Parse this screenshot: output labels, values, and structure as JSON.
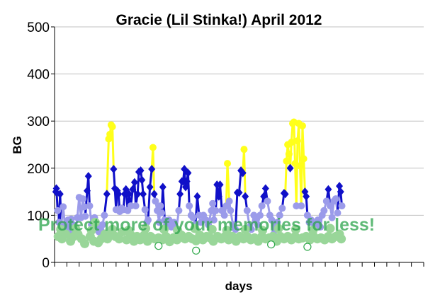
{
  "chart_data": {
    "type": "line",
    "title": "Gracie (Lil Stinka!) April 2012",
    "xlabel": "days",
    "ylabel": "BG",
    "ylim": [
      0,
      500
    ],
    "yticks": [
      0,
      100,
      200,
      300,
      400,
      500
    ],
    "xlim": [
      0,
      30
    ],
    "grid": "horizontal",
    "legend": "none",
    "colors": {
      "line_main": "#1010c8",
      "line_light": "#9b9bea",
      "line_high": "#ffff1a",
      "low_points": "#99d699",
      "very_low_points": "#2fa84a",
      "gridline": "#c0c0c0"
    },
    "series": [
      {
        "values": [
          [
            0.1,
            150
          ],
          [
            0.15,
            157
          ],
          [
            0.25,
            110
          ],
          [
            0.35,
            85
          ],
          [
            0.45,
            145
          ],
          [
            0.55,
            80
          ],
          [
            0.7,
            118
          ],
          [
            0.85,
            75
          ],
          [
            1.0,
            70
          ],
          [
            1.1,
            90
          ],
          [
            1.2,
            60
          ],
          [
            1.35,
            92
          ],
          [
            1.5,
            80
          ],
          [
            1.6,
            70
          ],
          [
            1.7,
            65
          ],
          [
            1.85,
            95
          ],
          [
            2.0,
            138
          ],
          [
            2.15,
            95
          ],
          [
            2.3,
            135
          ],
          [
            2.4,
            118
          ],
          [
            2.5,
            98
          ],
          [
            2.65,
            152
          ],
          [
            2.75,
            183
          ],
          [
            2.85,
            120
          ],
          [
            3.0,
            80
          ],
          [
            3.1,
            70
          ],
          [
            3.25,
            95
          ],
          [
            3.4,
            85
          ],
          [
            3.5,
            75
          ],
          [
            3.6,
            65
          ],
          [
            3.75,
            70
          ],
          [
            3.9,
            80
          ],
          [
            4.05,
            100
          ],
          [
            4.25,
            145
          ],
          [
            4.4,
            262
          ],
          [
            4.5,
            272
          ],
          [
            4.6,
            292
          ],
          [
            4.7,
            288
          ],
          [
            4.8,
            198
          ],
          [
            4.9,
            157
          ],
          [
            5.0,
            112
          ],
          [
            5.1,
            152
          ],
          [
            5.2,
            145
          ],
          [
            5.3,
            108
          ],
          [
            5.45,
            115
          ],
          [
            5.6,
            112
          ],
          [
            5.7,
            145
          ],
          [
            5.8,
            155
          ],
          [
            5.95,
            110
          ],
          [
            6.05,
            145
          ],
          [
            6.2,
            120
          ],
          [
            6.35,
            155
          ],
          [
            6.5,
            170
          ],
          [
            6.6,
            120
          ],
          [
            6.75,
            145
          ],
          [
            6.85,
            192
          ],
          [
            7.0,
            195
          ],
          [
            7.1,
            175
          ],
          [
            7.2,
            145
          ],
          [
            7.35,
            112
          ],
          [
            7.5,
            85
          ],
          [
            7.6,
            90
          ],
          [
            7.75,
            160
          ],
          [
            7.9,
            198
          ],
          [
            8.0,
            244
          ],
          [
            8.1,
            145
          ],
          [
            8.2,
            130
          ],
          [
            8.35,
            110
          ],
          [
            8.5,
            85
          ],
          [
            8.6,
            120
          ],
          [
            8.7,
            105
          ],
          [
            8.8,
            160
          ],
          [
            8.95,
            90
          ],
          [
            9.1,
            80
          ],
          [
            9.3,
            90
          ],
          [
            9.5,
            75
          ],
          [
            9.7,
            85
          ],
          [
            9.9,
            70
          ],
          [
            10.1,
            110
          ],
          [
            10.2,
            145
          ],
          [
            10.35,
            172
          ],
          [
            10.45,
            172
          ],
          [
            10.55,
            198
          ],
          [
            10.65,
            160
          ],
          [
            10.75,
            172
          ],
          [
            10.85,
            190
          ],
          [
            10.95,
            120
          ],
          [
            11.1,
            100
          ],
          [
            11.25,
            95
          ],
          [
            11.45,
            80
          ],
          [
            11.6,
            140
          ],
          [
            11.75,
            100
          ],
          [
            11.9,
            85
          ],
          [
            12.1,
            100
          ],
          [
            12.3,
            90
          ],
          [
            12.5,
            80
          ],
          [
            12.75,
            110
          ],
          [
            12.85,
            125
          ],
          [
            12.95,
            90
          ],
          [
            13.1,
            110
          ],
          [
            13.2,
            165
          ],
          [
            13.35,
            140
          ],
          [
            13.45,
            165
          ],
          [
            13.6,
            110
          ],
          [
            13.8,
            100
          ],
          [
            13.95,
            120
          ],
          [
            14.05,
            210
          ],
          [
            14.2,
            130
          ],
          [
            14.3,
            110
          ],
          [
            14.5,
            80
          ],
          [
            14.7,
            70
          ],
          [
            14.85,
            148
          ],
          [
            15.0,
            148
          ],
          [
            15.15,
            195
          ],
          [
            15.3,
            190
          ],
          [
            15.4,
            240
          ],
          [
            15.5,
            140
          ],
          [
            15.65,
            110
          ],
          [
            15.85,
            75
          ],
          [
            16.0,
            70
          ],
          [
            16.2,
            100
          ],
          [
            16.35,
            90
          ],
          [
            16.5,
            80
          ],
          [
            16.7,
            100
          ],
          [
            16.85,
            120
          ],
          [
            17.0,
            140
          ],
          [
            17.15,
            157
          ],
          [
            17.3,
            130
          ],
          [
            17.5,
            100
          ],
          [
            17.65,
            90
          ],
          [
            17.8,
            60
          ],
          [
            17.95,
            75
          ],
          [
            18.1,
            85
          ],
          [
            18.3,
            100
          ],
          [
            18.5,
            115
          ],
          [
            18.65,
            147
          ],
          [
            18.75,
            145
          ],
          [
            18.85,
            215
          ],
          [
            18.95,
            250
          ],
          [
            19.05,
            230
          ],
          [
            19.15,
            200
          ],
          [
            19.25,
            255
          ],
          [
            19.35,
            295
          ],
          [
            19.45,
            298
          ],
          [
            19.55,
            210
          ],
          [
            19.65,
            120
          ],
          [
            19.75,
            258
          ],
          [
            19.85,
            295
          ],
          [
            19.95,
            205
          ],
          [
            20.05,
            120
          ],
          [
            20.15,
            290
          ],
          [
            20.25,
            220
          ],
          [
            20.35,
            150
          ],
          [
            20.45,
            140
          ],
          [
            20.55,
            100
          ],
          [
            20.7,
            85
          ],
          [
            20.85,
            90
          ],
          [
            21.0,
            70
          ],
          [
            21.2,
            80
          ],
          [
            21.4,
            90
          ],
          [
            21.6,
            75
          ],
          [
            21.75,
            100
          ],
          [
            21.9,
            110
          ],
          [
            22.1,
            130
          ],
          [
            22.25,
            155
          ],
          [
            22.4,
            120
          ],
          [
            22.55,
            95
          ],
          [
            22.7,
            130
          ],
          [
            22.85,
            135
          ],
          [
            23.0,
            105
          ],
          [
            23.15,
            162
          ],
          [
            23.25,
            150
          ],
          [
            23.35,
            120
          ]
        ]
      }
    ],
    "low_points": [
      [
        0.3,
        55
      ],
      [
        0.6,
        50
      ],
      [
        0.9,
        60
      ],
      [
        1.3,
        45
      ],
      [
        1.55,
        55
      ],
      [
        1.9,
        60
      ],
      [
        2.2,
        50
      ],
      [
        2.45,
        40
      ],
      [
        2.9,
        55
      ],
      [
        3.2,
        45
      ],
      [
        3.3,
        85
      ],
      [
        3.55,
        42
      ],
      [
        3.8,
        50
      ],
      [
        4.1,
        60
      ],
      [
        4.3,
        50
      ],
      [
        4.55,
        58
      ],
      [
        4.95,
        55
      ],
      [
        5.25,
        50
      ],
      [
        5.5,
        65
      ],
      [
        5.85,
        48
      ],
      [
        6.15,
        60
      ],
      [
        6.45,
        45
      ],
      [
        6.7,
        55
      ],
      [
        6.95,
        48
      ],
      [
        7.3,
        58
      ],
      [
        7.55,
        45
      ],
      [
        7.8,
        55
      ],
      [
        8.15,
        50
      ],
      [
        8.45,
        52
      ],
      [
        8.75,
        48
      ],
      [
        9.05,
        55
      ],
      [
        9.35,
        44
      ],
      [
        9.65,
        52
      ],
      [
        9.95,
        48
      ],
      [
        10.3,
        58
      ],
      [
        10.6,
        50
      ],
      [
        10.9,
        55
      ],
      [
        11.2,
        50
      ],
      [
        11.5,
        46
      ],
      [
        11.8,
        58
      ],
      [
        12.05,
        48
      ],
      [
        12.35,
        55
      ],
      [
        12.65,
        52
      ],
      [
        12.9,
        45
      ],
      [
        13.25,
        55
      ],
      [
        13.55,
        50
      ],
      [
        13.85,
        55
      ],
      [
        14.15,
        48
      ],
      [
        14.45,
        55
      ],
      [
        14.75,
        45
      ],
      [
        15.05,
        55
      ],
      [
        15.35,
        50
      ],
      [
        15.65,
        55
      ],
      [
        15.95,
        48
      ],
      [
        16.25,
        52
      ],
      [
        16.55,
        45
      ],
      [
        16.85,
        55
      ],
      [
        17.15,
        50
      ],
      [
        17.45,
        52
      ],
      [
        17.75,
        55
      ],
      [
        18.05,
        45
      ],
      [
        18.35,
        55
      ],
      [
        18.65,
        50
      ],
      [
        18.95,
        55
      ],
      [
        19.25,
        48
      ],
      [
        19.55,
        55
      ],
      [
        19.85,
        50
      ],
      [
        20.15,
        52
      ],
      [
        20.45,
        55
      ],
      [
        20.75,
        48
      ],
      [
        21.05,
        55
      ],
      [
        21.35,
        50
      ],
      [
        21.65,
        52
      ],
      [
        21.95,
        48
      ],
      [
        22.25,
        55
      ],
      [
        22.55,
        50
      ],
      [
        22.85,
        55
      ],
      [
        23.15,
        60
      ],
      [
        23.3,
        50
      ],
      [
        0.5,
        70
      ],
      [
        1.7,
        72
      ],
      [
        3.0,
        68
      ],
      [
        4.7,
        70
      ],
      [
        6.0,
        68
      ],
      [
        7.4,
        72
      ],
      [
        8.9,
        70
      ],
      [
        10.0,
        68
      ],
      [
        11.4,
        72
      ],
      [
        12.8,
        70
      ],
      [
        14.0,
        68
      ],
      [
        15.5,
        70
      ],
      [
        16.9,
        68
      ],
      [
        18.2,
        72
      ],
      [
        19.6,
        70
      ],
      [
        21.0,
        68
      ],
      [
        22.4,
        72
      ]
    ],
    "very_low_points": [
      [
        8.45,
        35
      ],
      [
        11.5,
        25
      ],
      [
        17.6,
        38
      ],
      [
        20.55,
        33
      ]
    ],
    "watermark": "Protect more of your memories for less!"
  }
}
